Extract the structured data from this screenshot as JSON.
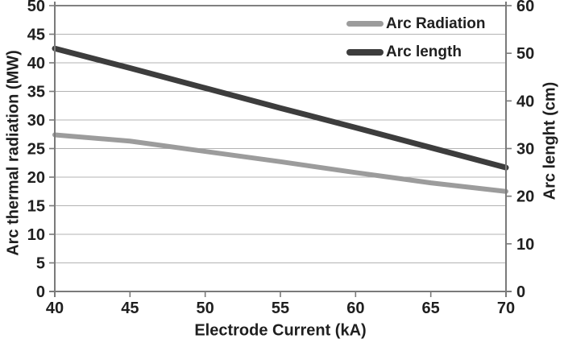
{
  "chart_data": {
    "type": "line",
    "title": "",
    "xlabel": "Electrode Current (kA)",
    "ylabel_left": "Arc thermal radiation (MW)",
    "ylabel_right": "Arc lenght (cm)",
    "x": [
      40,
      45,
      50,
      55,
      60,
      65,
      70
    ],
    "series": [
      {
        "name": "Arc Radiation",
        "axis": "left",
        "color": "#9c9c9c",
        "stroke_width": 6,
        "values": [
          27.4,
          26.3,
          24.5,
          22.7,
          20.8,
          19.0,
          17.5
        ]
      },
      {
        "name": "Arc length",
        "axis": "right",
        "color": "#3d3d3d",
        "stroke_width": 7,
        "values": [
          51.0,
          46.9,
          42.7,
          38.5,
          34.4,
          30.2,
          26.0
        ]
      }
    ],
    "xlim": [
      40,
      70
    ],
    "ylim_left": [
      0,
      50
    ],
    "ylim_right": [
      0,
      60
    ],
    "x_ticks": [
      "40",
      "45",
      "50",
      "55",
      "60",
      "65",
      "70"
    ],
    "y_left_ticks": [
      "0",
      "5",
      "10",
      "15",
      "20",
      "25",
      "30",
      "35",
      "40",
      "45",
      "50"
    ],
    "y_right_ticks": [
      "0",
      "10",
      "20",
      "30",
      "40",
      "50",
      "60"
    ],
    "grid": "horizontal",
    "legend_position": "top-right",
    "legend": [
      {
        "label": "Arc Radiation",
        "color": "#9c9c9c",
        "swatch_height": 7
      },
      {
        "label": "Arc length",
        "color": "#3d3d3d",
        "swatch_height": 8
      }
    ],
    "colors": {
      "gridline": "#b3b3b3",
      "frame_top": "#6e6e6e",
      "axis": "#7a7a7a",
      "text": "#1f1f1f",
      "background": "#ffffff"
    }
  }
}
